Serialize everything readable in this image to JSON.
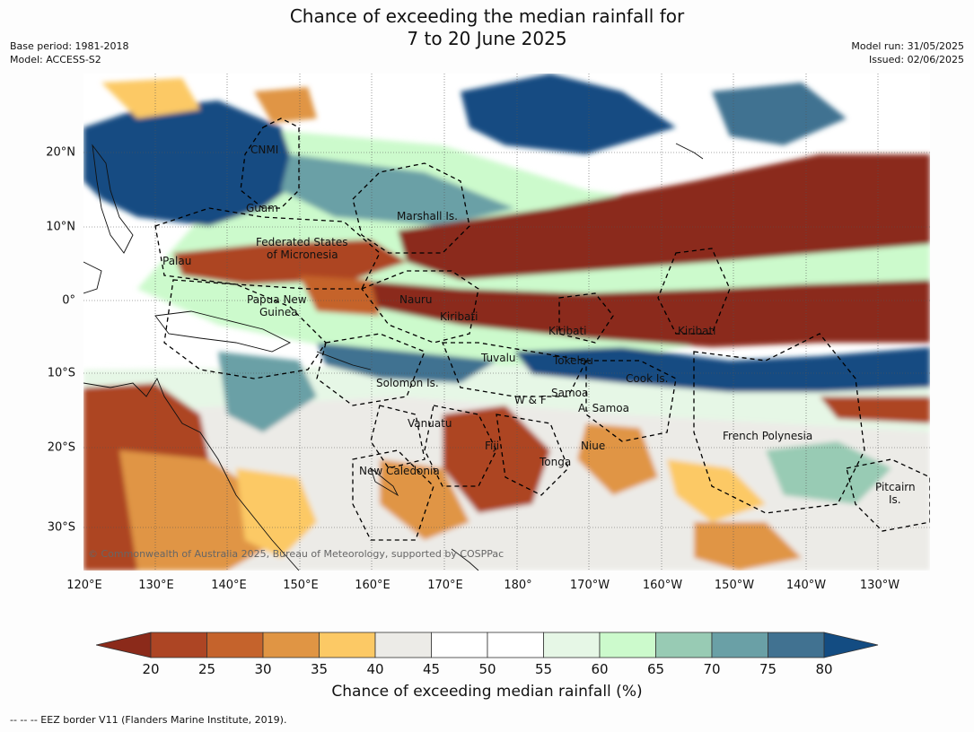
{
  "header": {
    "title_line1": "Chance of exceeding the median rainfall for",
    "title_line2": "7 to 20 June 2025",
    "base_period": "Base period: 1981-2018",
    "model": "Model: ACCESS-S2",
    "model_run": "Model run: 31/05/2025",
    "issued": "Issued: 02/06/2025"
  },
  "map": {
    "copyright": "© Commonwealth of Australia 2025, Bureau of Meteorology, supported by COSPPac",
    "lon_ticks": [
      "120°E",
      "130°E",
      "140°E",
      "150°E",
      "160°E",
      "170°E",
      "180°",
      "170°W",
      "160°W",
      "150°W",
      "140°W",
      "130°W"
    ],
    "lat_ticks": [
      "20°N",
      "10°N",
      "0°",
      "10°S",
      "20°S",
      "30°S"
    ],
    "places": {
      "cnmi": "CNMI",
      "guam": "Guam",
      "marshall": "Marshall Is.",
      "fsm_1": "Federated States",
      "fsm_2": "of Micronesia",
      "palau": "Palau",
      "nauru": "Nauru",
      "png_1": "Papua New",
      "png_2": "Guinea",
      "kiribati_w": "Kiribati",
      "kiribati_c": "Kiribati",
      "kiribati_e": "Kiribati",
      "tuvalu": "Tuvalu",
      "tokelau": "Tokelau",
      "cook": "Cook Is.",
      "solomon": "Solomon Is.",
      "samoa": "Samoa",
      "am_samoa": "A. Samoa",
      "wf": "W & F",
      "vanuatu": "Vanuatu",
      "fiji": "Fiji",
      "niue": "Niue",
      "tonga": "Tonga",
      "new_caledonia": "New Caledonia",
      "fr_polynesia": "French Polynesia",
      "pitcairn_1": "Pitcairn",
      "pitcairn_2": "Is."
    }
  },
  "colorbar": {
    "label": "Chance of exceeding median rainfall (%)",
    "ticks": [
      "20",
      "25",
      "30",
      "35",
      "40",
      "45",
      "50",
      "55",
      "60",
      "65",
      "70",
      "75",
      "80"
    ],
    "colors": {
      "below20": "#8b2a1a",
      "b20_25": "#ad4524",
      "b25_30": "#c5632c",
      "b30_35": "#e09544",
      "b35_40": "#fcc965",
      "b40_45": "#ecebe7",
      "b45_50": "#ffffff",
      "b50_55": "#ffffff",
      "b55_60": "#e6f7e6",
      "b60_65": "#ccfacc",
      "b65_70": "#98cbb4",
      "b70_75": "#6aa0a6",
      "b75_80": "#417291",
      "above80": "#134c82"
    }
  },
  "footnote": "--  --  -- EEZ border V11 (Flanders Marine Institute, 2019)."
}
